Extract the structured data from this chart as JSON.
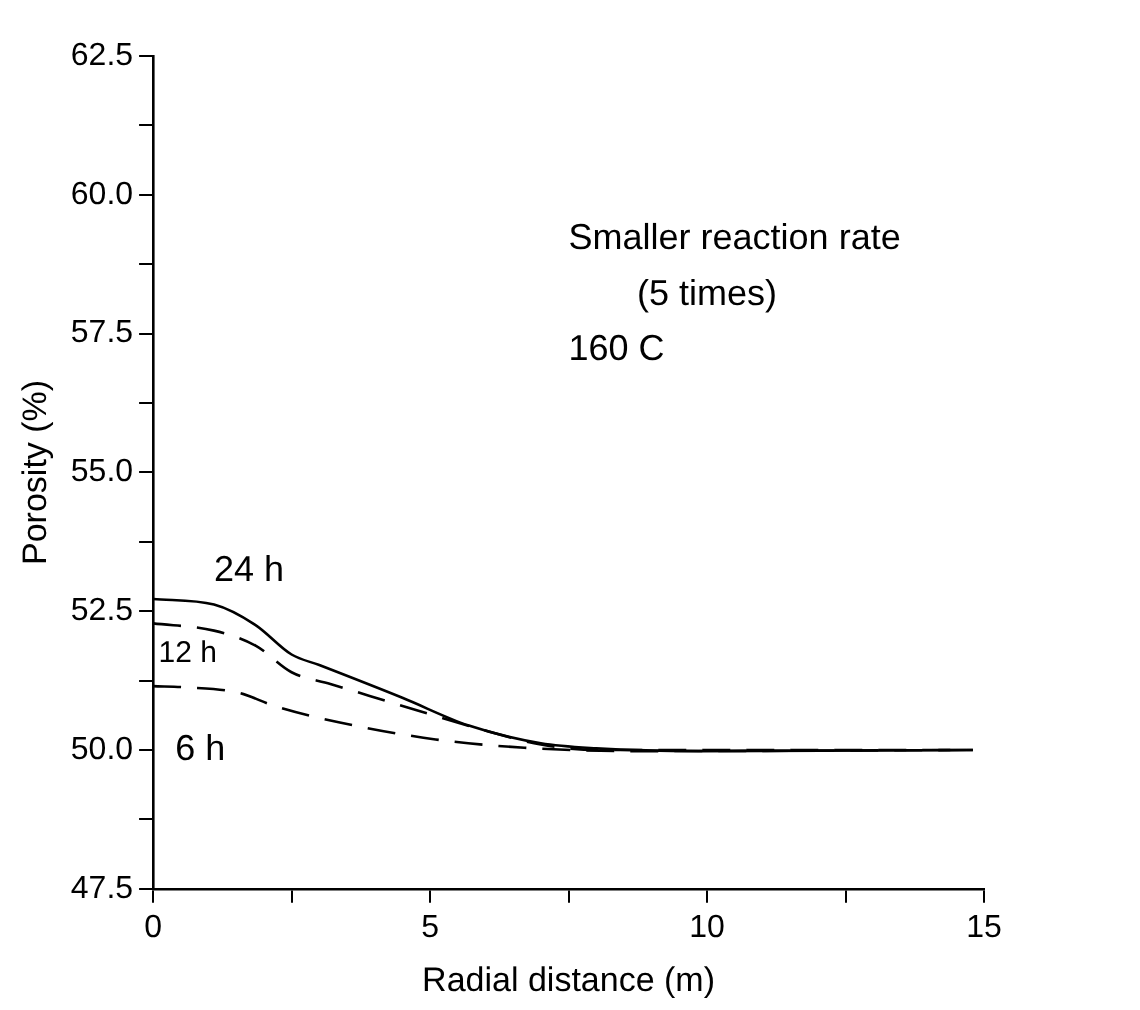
{
  "chart_data": {
    "type": "line",
    "xlabel": "Radial distance (m)",
    "ylabel": "Porosity (%)",
    "annotations": [
      "Smaller reaction rate",
      "(5 times)",
      "160 C"
    ],
    "series": [
      {
        "name": "24 h",
        "color": "#000000",
        "line_style": "solid",
        "x": [
          0,
          1.1,
          1.85,
          2.5,
          3.0,
          4.5,
          5.7,
          7.0,
          8.0,
          9.85,
          14.8
        ],
        "values": [
          52.72,
          52.62,
          52.25,
          51.72,
          51.53,
          50.94,
          50.44,
          50.12,
          50.03,
          49.98,
          50.0
        ]
      },
      {
        "name": "12 h",
        "color": "#000000",
        "line_style": "dashed",
        "x": [
          0,
          1.1,
          1.85,
          2.5,
          3.2,
          4.85,
          6.0,
          7.0,
          8.0,
          14.8
        ],
        "values": [
          52.28,
          52.15,
          51.88,
          51.4,
          51.19,
          50.69,
          50.35,
          50.1,
          50.0,
          50.0
        ]
      },
      {
        "name": "6 h",
        "color": "#000000",
        "line_style": "dashed",
        "x": [
          0,
          0.6,
          1.55,
          2.2,
          3.35,
          5.1,
          6.7,
          8.6,
          14.8
        ],
        "values": [
          51.15,
          51.13,
          51.03,
          50.79,
          50.5,
          50.19,
          50.04,
          49.98,
          50.0
        ]
      }
    ],
    "xlim": [
      0,
      15
    ],
    "xticks": [
      0,
      {
        "value": 2.5,
        "label": null
      },
      5,
      {
        "value": 7.5,
        "label": null
      },
      10,
      {
        "value": 12.5,
        "label": null
      },
      15
    ],
    "ylim": [
      47.5,
      62.5
    ],
    "yticks": [
      47.5,
      {
        "value": 48.75,
        "label": null
      },
      {
        "value": 50,
        "label": "50.0"
      },
      {
        "value": 51.25,
        "label": null
      },
      52.5,
      {
        "value": 53.75,
        "label": null
      },
      {
        "value": 55,
        "label": "55.0"
      },
      {
        "value": 56.25,
        "label": null
      },
      57.5,
      {
        "value": 58.75,
        "label": null
      },
      {
        "value": 60,
        "label": "60.0"
      },
      {
        "value": 61.25,
        "label": null
      },
      62.5
    ],
    "grid": false,
    "legend": false,
    "marker": "none"
  }
}
